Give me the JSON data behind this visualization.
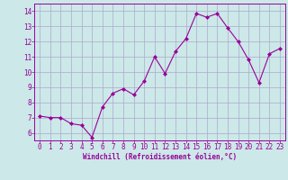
{
  "x": [
    0,
    1,
    2,
    3,
    4,
    5,
    6,
    7,
    8,
    9,
    10,
    11,
    12,
    13,
    14,
    15,
    16,
    17,
    18,
    19,
    20,
    21,
    22,
    23
  ],
  "y": [
    7.1,
    7.0,
    7.0,
    6.6,
    6.5,
    5.7,
    7.7,
    8.6,
    8.9,
    8.5,
    9.4,
    11.0,
    9.9,
    11.35,
    12.2,
    13.85,
    13.6,
    13.85,
    12.9,
    12.0,
    10.8,
    9.3,
    11.2,
    11.55
  ],
  "line_color": "#990099",
  "marker": "D",
  "marker_size": 2,
  "bg_color": "#cce8e8",
  "grid_color": "#aaaacc",
  "xlabel": "Windchill (Refroidissement éolien,°C)",
  "xlabel_color": "#990099",
  "ylim": [
    5.5,
    14.5
  ],
  "yticks": [
    6,
    7,
    8,
    9,
    10,
    11,
    12,
    13,
    14
  ],
  "xticks": [
    0,
    1,
    2,
    3,
    4,
    5,
    6,
    7,
    8,
    9,
    10,
    11,
    12,
    13,
    14,
    15,
    16,
    17,
    18,
    19,
    20,
    21,
    22,
    23
  ],
  "tick_fontsize": 5.5,
  "xlabel_fontsize": 5.5
}
